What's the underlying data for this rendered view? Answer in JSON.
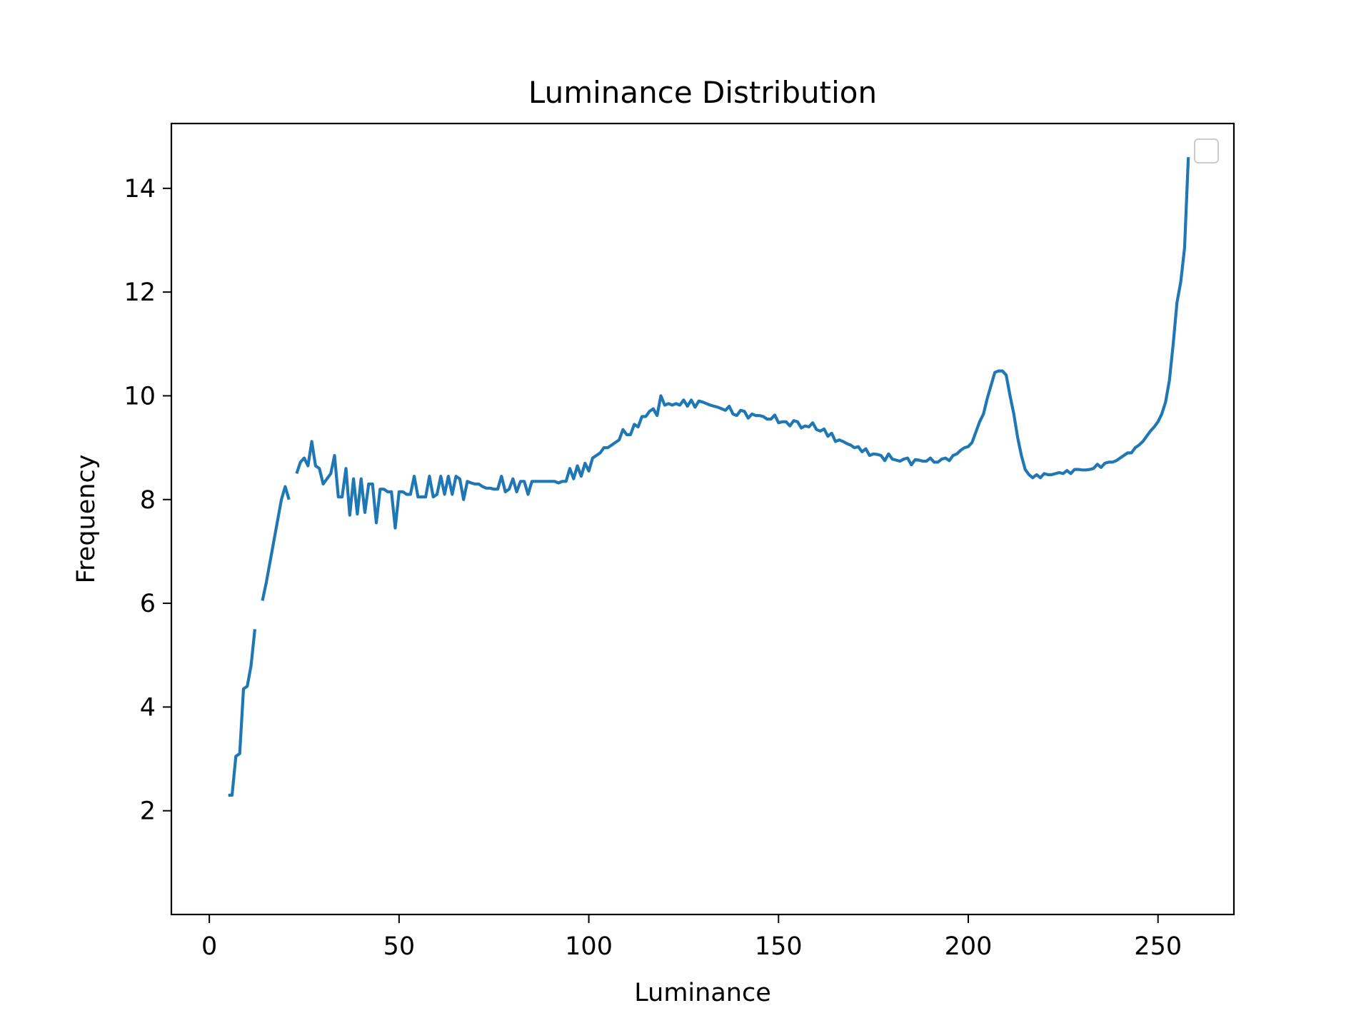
{
  "chart_data": {
    "type": "line",
    "title": "Luminance Distribution",
    "xlabel": "Luminance",
    "ylabel": "Frequency",
    "xlim": [
      -10,
      270
    ],
    "ylim": [
      0,
      15.25
    ],
    "xticks": [
      0,
      50,
      100,
      150,
      200,
      250
    ],
    "yticks": [
      2,
      4,
      6,
      8,
      10,
      12,
      14
    ],
    "grid": false,
    "legend": "top-right (empty)",
    "series": [
      {
        "color": "#1f77b4",
        "points": [
          [
            5,
            2.3
          ],
          [
            6,
            2.3
          ],
          [
            7,
            3.05
          ],
          [
            8,
            3.1
          ],
          [
            9,
            4.35
          ],
          [
            10,
            4.4
          ],
          [
            11,
            4.8
          ],
          [
            12,
            5.5
          ],
          null,
          [
            14,
            6.05
          ],
          [
            15,
            6.4
          ],
          [
            16,
            6.8
          ],
          [
            17,
            7.2
          ],
          [
            18,
            7.6
          ],
          [
            19,
            8.0
          ],
          [
            20,
            8.25
          ],
          [
            21,
            8.0
          ],
          null,
          [
            23,
            8.5
          ],
          [
            24,
            8.72
          ],
          [
            25,
            8.8
          ],
          [
            26,
            8.65
          ],
          [
            27,
            9.12
          ],
          [
            28,
            8.65
          ],
          [
            29,
            8.6
          ],
          [
            30,
            8.3
          ],
          [
            31,
            8.4
          ],
          [
            32,
            8.5
          ],
          [
            33,
            8.85
          ],
          [
            34,
            8.05
          ],
          [
            35,
            8.05
          ],
          [
            36,
            8.6
          ],
          [
            37,
            7.7
          ],
          [
            38,
            8.4
          ],
          [
            39,
            7.72
          ],
          [
            40,
            8.4
          ],
          [
            41,
            7.75
          ],
          [
            42,
            8.3
          ],
          [
            43,
            8.3
          ],
          [
            44,
            7.55
          ],
          [
            45,
            8.2
          ],
          [
            46,
            8.2
          ],
          [
            47,
            8.15
          ],
          [
            48,
            8.15
          ],
          [
            49,
            7.45
          ],
          [
            50,
            8.15
          ],
          [
            51,
            8.15
          ],
          [
            52,
            8.1
          ],
          [
            53,
            8.1
          ],
          [
            54,
            8.45
          ],
          [
            55,
            8.05
          ],
          [
            56,
            8.05
          ],
          [
            57,
            8.05
          ],
          [
            58,
            8.45
          ],
          [
            59,
            8.05
          ],
          [
            60,
            8.1
          ],
          [
            61,
            8.45
          ],
          [
            62,
            8.1
          ],
          [
            63,
            8.45
          ],
          [
            64,
            8.1
          ],
          [
            65,
            8.45
          ],
          [
            66,
            8.4
          ],
          [
            67,
            8.0
          ],
          [
            68,
            8.35
          ],
          [
            69,
            8.32
          ],
          [
            70,
            8.3
          ],
          [
            71,
            8.3
          ],
          [
            72,
            8.25
          ],
          [
            73,
            8.22
          ],
          [
            74,
            8.22
          ],
          [
            75,
            8.2
          ],
          [
            76,
            8.2
          ],
          [
            77,
            8.45
          ],
          [
            78,
            8.15
          ],
          [
            79,
            8.2
          ],
          [
            80,
            8.4
          ],
          [
            81,
            8.15
          ],
          [
            82,
            8.35
          ],
          [
            83,
            8.35
          ],
          [
            84,
            8.1
          ],
          [
            85,
            8.35
          ],
          [
            86,
            8.35
          ],
          [
            87,
            8.35
          ],
          [
            88,
            8.35
          ],
          [
            89,
            8.35
          ],
          [
            90,
            8.35
          ],
          [
            91,
            8.35
          ],
          [
            92,
            8.32
          ],
          [
            93,
            8.35
          ],
          [
            94,
            8.35
          ],
          [
            95,
            8.6
          ],
          [
            96,
            8.4
          ],
          [
            97,
            8.65
          ],
          [
            98,
            8.45
          ],
          [
            99,
            8.7
          ],
          [
            100,
            8.55
          ],
          [
            101,
            8.8
          ],
          [
            102,
            8.85
          ],
          [
            103,
            8.9
          ],
          [
            104,
            9.0
          ],
          [
            105,
            9.0
          ],
          [
            106,
            9.05
          ],
          [
            107,
            9.1
          ],
          [
            108,
            9.15
          ],
          [
            109,
            9.35
          ],
          [
            110,
            9.25
          ],
          [
            111,
            9.25
          ],
          [
            112,
            9.45
          ],
          [
            113,
            9.4
          ],
          [
            114,
            9.6
          ],
          [
            115,
            9.6
          ],
          [
            116,
            9.7
          ],
          [
            117,
            9.75
          ],
          [
            118,
            9.62
          ],
          [
            119,
            10.0
          ],
          [
            120,
            9.82
          ],
          [
            121,
            9.85
          ],
          [
            122,
            9.82
          ],
          [
            123,
            9.85
          ],
          [
            124,
            9.82
          ],
          [
            125,
            9.92
          ],
          [
            126,
            9.8
          ],
          [
            127,
            9.92
          ],
          [
            128,
            9.78
          ],
          [
            129,
            9.9
          ],
          [
            130,
            9.88
          ],
          [
            131,
            9.85
          ],
          [
            132,
            9.82
          ],
          [
            133,
            9.8
          ],
          [
            134,
            9.78
          ],
          [
            135,
            9.75
          ],
          [
            136,
            9.72
          ],
          [
            137,
            9.8
          ],
          [
            138,
            9.65
          ],
          [
            139,
            9.62
          ],
          [
            140,
            9.72
          ],
          [
            141,
            9.7
          ],
          [
            142,
            9.57
          ],
          [
            143,
            9.65
          ],
          [
            144,
            9.62
          ],
          [
            145,
            9.62
          ],
          [
            146,
            9.6
          ],
          [
            147,
            9.55
          ],
          [
            148,
            9.55
          ],
          [
            149,
            9.63
          ],
          [
            150,
            9.48
          ],
          [
            151,
            9.5
          ],
          [
            152,
            9.5
          ],
          [
            153,
            9.42
          ],
          [
            154,
            9.52
          ],
          [
            155,
            9.5
          ],
          [
            156,
            9.38
          ],
          [
            157,
            9.42
          ],
          [
            158,
            9.4
          ],
          [
            159,
            9.48
          ],
          [
            160,
            9.35
          ],
          [
            161,
            9.32
          ],
          [
            162,
            9.36
          ],
          [
            163,
            9.22
          ],
          [
            164,
            9.28
          ],
          [
            165,
            9.12
          ],
          [
            166,
            9.15
          ],
          [
            167,
            9.12
          ],
          [
            168,
            9.08
          ],
          [
            169,
            9.05
          ],
          [
            170,
            9.0
          ],
          [
            171,
            9.02
          ],
          [
            172,
            8.92
          ],
          [
            173,
            8.98
          ],
          [
            174,
            8.85
          ],
          [
            175,
            8.88
          ],
          [
            176,
            8.87
          ],
          [
            177,
            8.85
          ],
          [
            178,
            8.75
          ],
          [
            179,
            8.88
          ],
          [
            180,
            8.78
          ],
          [
            181,
            8.76
          ],
          [
            182,
            8.74
          ],
          [
            183,
            8.78
          ],
          [
            184,
            8.8
          ],
          [
            185,
            8.67
          ],
          [
            186,
            8.77
          ],
          [
            187,
            8.76
          ],
          [
            188,
            8.74
          ],
          [
            189,
            8.74
          ],
          [
            190,
            8.8
          ],
          [
            191,
            8.72
          ],
          [
            192,
            8.72
          ],
          [
            193,
            8.78
          ],
          [
            194,
            8.8
          ],
          [
            195,
            8.75
          ],
          [
            196,
            8.85
          ],
          [
            197,
            8.88
          ],
          [
            198,
            8.95
          ],
          [
            199,
            9.0
          ],
          [
            200,
            9.02
          ],
          [
            201,
            9.1
          ],
          [
            202,
            9.3
          ],
          [
            203,
            9.5
          ],
          [
            204,
            9.65
          ],
          [
            205,
            9.95
          ],
          [
            206,
            10.2
          ],
          [
            207,
            10.45
          ],
          [
            208,
            10.48
          ],
          [
            209,
            10.48
          ],
          [
            210,
            10.4
          ],
          [
            211,
            10.0
          ],
          [
            212,
            9.65
          ],
          [
            213,
            9.2
          ],
          [
            214,
            8.85
          ],
          [
            215,
            8.58
          ],
          [
            216,
            8.48
          ],
          [
            217,
            8.42
          ],
          [
            218,
            8.48
          ],
          [
            219,
            8.42
          ],
          [
            220,
            8.5
          ],
          [
            221,
            8.48
          ],
          [
            222,
            8.48
          ],
          [
            223,
            8.5
          ],
          [
            224,
            8.52
          ],
          [
            225,
            8.5
          ],
          [
            226,
            8.56
          ],
          [
            227,
            8.5
          ],
          [
            228,
            8.58
          ],
          [
            229,
            8.58
          ],
          [
            230,
            8.57
          ],
          [
            231,
            8.57
          ],
          [
            232,
            8.58
          ],
          [
            233,
            8.6
          ],
          [
            234,
            8.68
          ],
          [
            235,
            8.62
          ],
          [
            236,
            8.7
          ],
          [
            237,
            8.72
          ],
          [
            238,
            8.72
          ],
          [
            239,
            8.75
          ],
          [
            240,
            8.8
          ],
          [
            241,
            8.85
          ],
          [
            242,
            8.9
          ],
          [
            243,
            8.9
          ],
          [
            244,
            9.0
          ],
          [
            245,
            9.05
          ],
          [
            246,
            9.12
          ],
          [
            247,
            9.22
          ],
          [
            248,
            9.32
          ],
          [
            249,
            9.4
          ],
          [
            250,
            9.5
          ],
          [
            251,
            9.65
          ],
          [
            252,
            9.88
          ],
          [
            253,
            10.3
          ],
          [
            254,
            11.0
          ],
          [
            255,
            11.8
          ],
          [
            256,
            12.2
          ],
          [
            257,
            12.85
          ],
          [
            258,
            14.6
          ]
        ]
      }
    ]
  }
}
